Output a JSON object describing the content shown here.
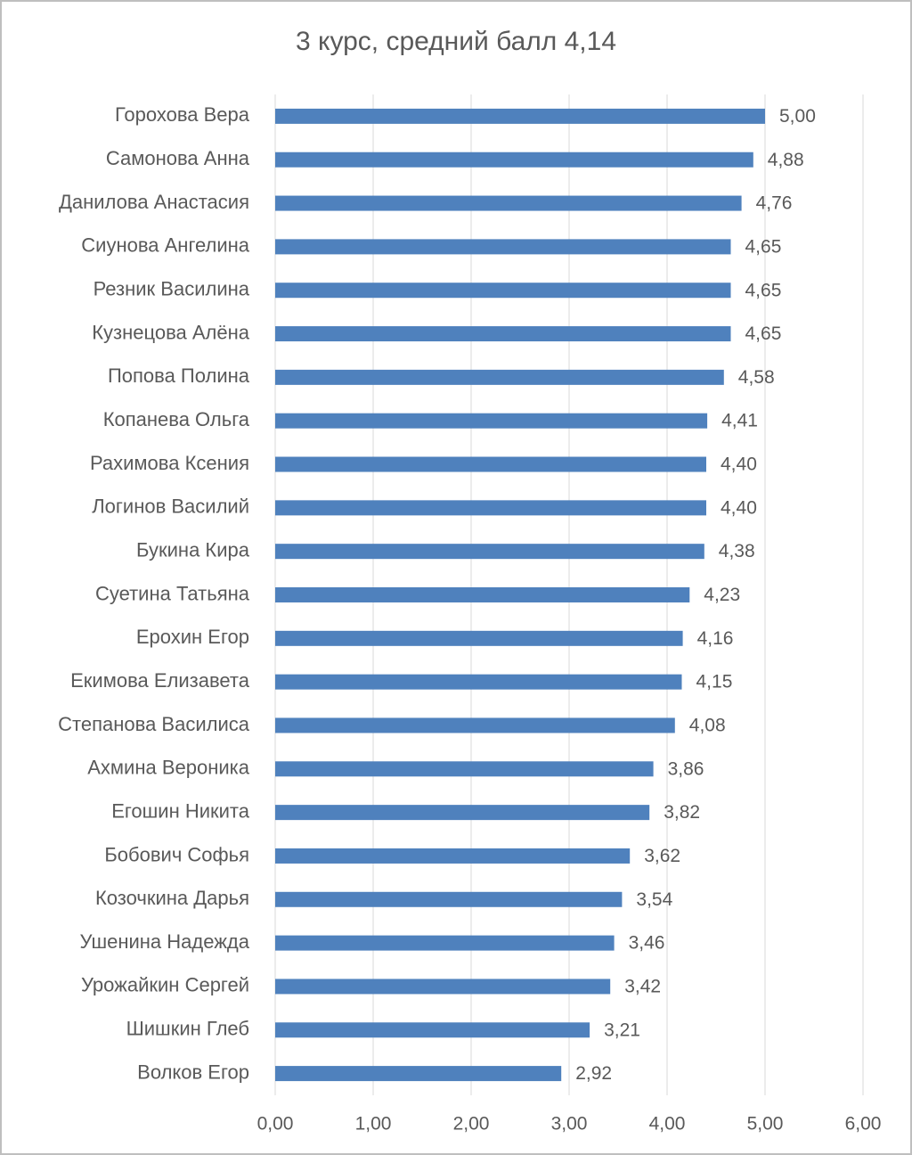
{
  "chart_data": {
    "type": "barh",
    "title": "3 курс, средний балл 4,14",
    "categories": [
      "Горохова Вера",
      "Самонова Анна",
      "Данилова Анастасия",
      "Сиунова Ангелина",
      "Резник Василина",
      "Кузнецова Алёна",
      "Попова Полина",
      "Копанева Ольга",
      "Рахимова Ксения",
      "Логинов Василий",
      "Букина Кира",
      "Суетина Татьяна",
      "Ерохин Егор",
      "Екимова Елизавета",
      "Степанова Василиса",
      "Ахмина Вероника",
      "Егошин Никита",
      "Бобович Софья",
      "Козочкина Дарья",
      "Ушенина Надежда",
      "Урожайкин Сергей",
      "Шишкин Глеб",
      "Волков Егор"
    ],
    "values": [
      5.0,
      4.88,
      4.76,
      4.65,
      4.65,
      4.65,
      4.58,
      4.41,
      4.4,
      4.4,
      4.38,
      4.23,
      4.16,
      4.15,
      4.08,
      3.86,
      3.82,
      3.62,
      3.54,
      3.46,
      3.42,
      3.21,
      2.92
    ],
    "value_labels": [
      "5,00",
      "4,88",
      "4,76",
      "4,65",
      "4,65",
      "4,65",
      "4,58",
      "4,41",
      "4,40",
      "4,40",
      "4,38",
      "4,23",
      "4,16",
      "4,15",
      "4,08",
      "3,86",
      "3,82",
      "3,62",
      "3,54",
      "3,46",
      "3,42",
      "3,21",
      "2,92"
    ],
    "color": "#4f81bd",
    "xlim": [
      0,
      6
    ],
    "xticks": [
      {
        "value": 0,
        "label": "0,00"
      },
      {
        "value": 1,
        "label": "1,00"
      },
      {
        "value": 2,
        "label": "2,00"
      },
      {
        "value": 3,
        "label": "3,00"
      },
      {
        "value": 4,
        "label": "4,00"
      },
      {
        "value": 5,
        "label": "5,00"
      },
      {
        "value": 6,
        "label": "6,00"
      }
    ],
    "grid": true
  }
}
